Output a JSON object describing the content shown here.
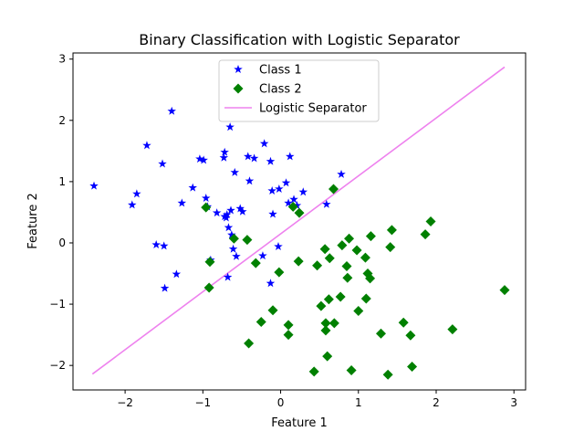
{
  "chart_data": {
    "type": "scatter",
    "title": "Binary Classification with Logistic Separator",
    "xlabel": "Feature 1",
    "ylabel": "Feature 2",
    "xlim": [
      -2.67,
      3.15
    ],
    "ylim": [
      -2.4,
      3.1
    ],
    "xticks": [
      -2,
      -1,
      0,
      1,
      2,
      3
    ],
    "yticks": [
      -2,
      -1,
      0,
      1,
      2,
      3
    ],
    "xtick_labels": [
      "−2",
      "−1",
      "0",
      "1",
      "2",
      "3"
    ],
    "ytick_labels": [
      "−2",
      "−1",
      "0",
      "1",
      "2",
      "3"
    ],
    "grid": false,
    "legend_position": "top-center",
    "series": [
      {
        "name": "Class 1",
        "marker": "star",
        "color": "#0000ff",
        "points": [
          [
            -2.4,
            0.93
          ],
          [
            -1.91,
            0.62
          ],
          [
            -1.85,
            0.8
          ],
          [
            -1.72,
            1.59
          ],
          [
            -1.6,
            -0.03
          ],
          [
            -1.52,
            1.29
          ],
          [
            -1.5,
            -0.05
          ],
          [
            -1.49,
            -0.74
          ],
          [
            -1.4,
            2.15
          ],
          [
            -1.34,
            -0.51
          ],
          [
            -1.27,
            0.65
          ],
          [
            -1.13,
            0.9
          ],
          [
            -1.04,
            1.37
          ],
          [
            -0.99,
            1.35
          ],
          [
            -0.96,
            0.73
          ],
          [
            -0.94,
            0.59
          ],
          [
            -0.9,
            -0.28
          ],
          [
            -0.82,
            0.49
          ],
          [
            -0.73,
            1.39
          ],
          [
            -0.72,
            1.48
          ],
          [
            -0.72,
            0.43
          ],
          [
            -0.7,
            0.41
          ],
          [
            -0.69,
            0.46
          ],
          [
            -0.68,
            -0.56
          ],
          [
            -0.67,
            0.25
          ],
          [
            -0.65,
            1.89
          ],
          [
            -0.64,
            0.53
          ],
          [
            -0.63,
            0.13
          ],
          [
            -0.61,
            -0.1
          ],
          [
            -0.59,
            1.15
          ],
          [
            -0.57,
            -0.22
          ],
          [
            -0.52,
            0.56
          ],
          [
            -0.49,
            0.51
          ],
          [
            -0.42,
            1.41
          ],
          [
            -0.4,
            1.01
          ],
          [
            -0.34,
            1.38
          ],
          [
            -0.23,
            -0.21
          ],
          [
            -0.21,
            1.62
          ],
          [
            -0.13,
            1.33
          ],
          [
            -0.13,
            -0.66
          ],
          [
            -0.11,
            0.85
          ],
          [
            -0.1,
            0.47
          ],
          [
            -0.03,
            -0.06
          ],
          [
            -0.02,
            0.88
          ],
          [
            0.07,
            0.98
          ],
          [
            0.1,
            0.65
          ],
          [
            0.12,
            1.41
          ],
          [
            0.17,
            0.71
          ],
          [
            0.21,
            0.61
          ],
          [
            0.29,
            0.83
          ],
          [
            0.59,
            0.63
          ],
          [
            0.78,
            1.12
          ]
        ]
      },
      {
        "name": "Class 2",
        "marker": "diamond",
        "color": "#008000",
        "points": [
          [
            -0.96,
            0.58
          ],
          [
            -0.91,
            -0.31
          ],
          [
            -0.92,
            -0.73
          ],
          [
            -0.6,
            0.07
          ],
          [
            -0.43,
            0.05
          ],
          [
            -0.41,
            -1.64
          ],
          [
            -0.32,
            -0.33
          ],
          [
            -0.25,
            -1.29
          ],
          [
            -0.1,
            -1.1
          ],
          [
            -0.02,
            -0.48
          ],
          [
            0.1,
            -1.34
          ],
          [
            0.1,
            -1.5
          ],
          [
            0.16,
            0.59
          ],
          [
            0.23,
            -0.3
          ],
          [
            0.24,
            0.49
          ],
          [
            0.43,
            -2.1
          ],
          [
            0.47,
            -0.37
          ],
          [
            0.52,
            -1.03
          ],
          [
            0.57,
            -0.1
          ],
          [
            0.58,
            -1.43
          ],
          [
            0.58,
            -1.31
          ],
          [
            0.6,
            -1.85
          ],
          [
            0.62,
            -0.92
          ],
          [
            0.63,
            -0.25
          ],
          [
            0.68,
            0.88
          ],
          [
            0.69,
            -1.31
          ],
          [
            0.77,
            -0.88
          ],
          [
            0.79,
            -0.04
          ],
          [
            0.85,
            -0.38
          ],
          [
            0.86,
            -0.57
          ],
          [
            0.88,
            0.07
          ],
          [
            0.91,
            -2.08
          ],
          [
            0.98,
            -0.12
          ],
          [
            1.0,
            -1.11
          ],
          [
            1.09,
            -0.24
          ],
          [
            1.1,
            -0.91
          ],
          [
            1.12,
            -0.5
          ],
          [
            1.15,
            -0.58
          ],
          [
            1.16,
            0.11
          ],
          [
            1.29,
            -1.48
          ],
          [
            1.38,
            -2.15
          ],
          [
            1.41,
            -0.07
          ],
          [
            1.43,
            0.21
          ],
          [
            1.58,
            -1.3
          ],
          [
            1.67,
            -1.51
          ],
          [
            1.69,
            -2.02
          ],
          [
            1.86,
            0.14
          ],
          [
            1.93,
            0.35
          ],
          [
            2.21,
            -1.41
          ],
          [
            2.88,
            -0.77
          ]
        ]
      },
      {
        "name": "Logistic Separator",
        "marker": "line",
        "color": "#ee82ee",
        "line": [
          [
            -2.42,
            -2.14
          ],
          [
            2.88,
            2.87
          ]
        ]
      }
    ]
  }
}
